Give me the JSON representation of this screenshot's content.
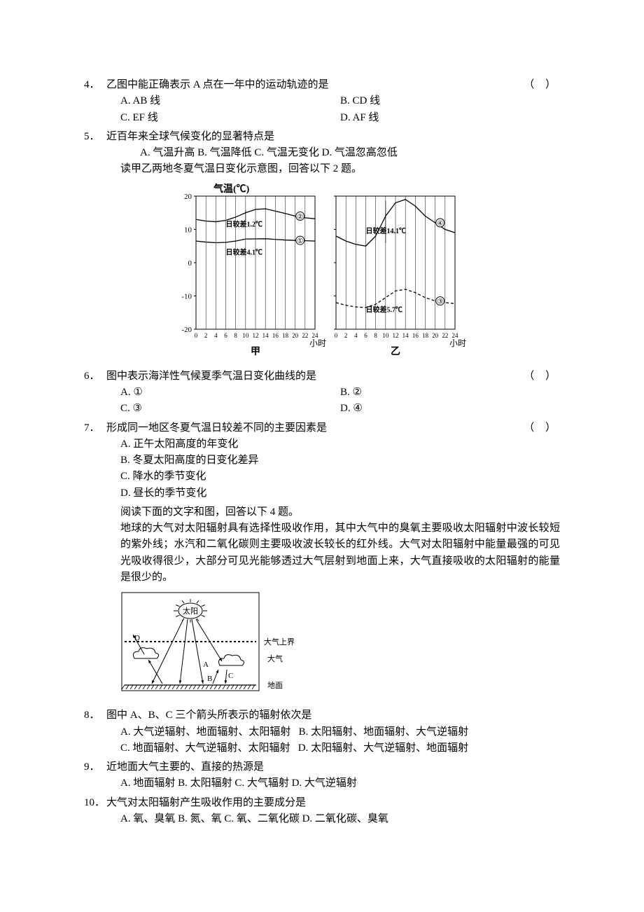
{
  "q4": {
    "num": "4．",
    "text": "乙图中能正确表示 A 点在一年中的运动轨迹的是",
    "paren": "（        ）",
    "optA": "A. AB 线",
    "optB": "B. CD 线",
    "optC": "C. EF 线",
    "optD": "D. AF 线"
  },
  "q5": {
    "num": "5．",
    "text": "近百年来全球气候变化的显著特点是",
    "opts": "A. 气温升高   B. 气温降低   C. 气温无变化   D. 气温忽高忽低",
    "intro": "读甲乙两地冬夏气温日变化示意图，回答以下 2 题。"
  },
  "chart1": {
    "title": "气温(℃)",
    "ylabels": [
      "20",
      "10",
      "0",
      "-10",
      "-20"
    ],
    "yvals": [
      20,
      10,
      0,
      -10,
      -20
    ],
    "xlabels": [
      "0",
      "2",
      "4",
      "6",
      "8",
      "10",
      "12",
      "14",
      "16",
      "18",
      "20",
      "22",
      "24"
    ],
    "xaxis_title": "小时",
    "panel_a_name": "甲",
    "panel_b_name": "乙",
    "annot_a_1": "日较差4.1℃",
    "annot_a_2": "日较差1.2℃",
    "annot_b_1": "日较差14.1℃",
    "annot_b_2": "日较差5.7℃",
    "mark2": "②",
    "mark1": "①",
    "mark4": "④",
    "mark3": "③",
    "line_color": "#000000",
    "grid_color": "#000000",
    "bg": "#ffffff",
    "curve_a_upper": [
      [
        0,
        13
      ],
      [
        2,
        12.5
      ],
      [
        4,
        12.3
      ],
      [
        6,
        12.7
      ],
      [
        8,
        13.7
      ],
      [
        10,
        15
      ],
      [
        12,
        16
      ],
      [
        14,
        16.2
      ],
      [
        16,
        15.5
      ],
      [
        18,
        14.8
      ],
      [
        20,
        14
      ],
      [
        22,
        13.5
      ],
      [
        24,
        13.2
      ]
    ],
    "curve_a_lower": [
      [
        0,
        6.5
      ],
      [
        2,
        6.2
      ],
      [
        4,
        6
      ],
      [
        6,
        6.1
      ],
      [
        8,
        6.5
      ],
      [
        10,
        7.1
      ],
      [
        12,
        7.15
      ],
      [
        14,
        7.2
      ],
      [
        16,
        7
      ],
      [
        18,
        6.8
      ],
      [
        20,
        6.7
      ],
      [
        22,
        6.6
      ],
      [
        24,
        6.5
      ]
    ],
    "curve_b_upper": [
      [
        0,
        8
      ],
      [
        2,
        6.5
      ],
      [
        4,
        5.5
      ],
      [
        6,
        5
      ],
      [
        8,
        8
      ],
      [
        10,
        14
      ],
      [
        12,
        18
      ],
      [
        14,
        19
      ],
      [
        16,
        17
      ],
      [
        18,
        14
      ],
      [
        20,
        12
      ],
      [
        22,
        10
      ],
      [
        24,
        9
      ]
    ],
    "curve_b_lower": [
      [
        0,
        -12
      ],
      [
        2,
        -12.8
      ],
      [
        4,
        -13.3
      ],
      [
        6,
        -13.5
      ],
      [
        8,
        -12.5
      ],
      [
        10,
        -10.5
      ],
      [
        12,
        -8.5
      ],
      [
        14,
        -8
      ],
      [
        16,
        -9
      ],
      [
        18,
        -10.5
      ],
      [
        20,
        -11.5
      ],
      [
        22,
        -12
      ],
      [
        24,
        -12.3
      ]
    ]
  },
  "q6": {
    "num": "6．",
    "text": "图中表示海洋性气候夏季气温日变化曲线的是",
    "paren": "（        ）",
    "optA": "A. ①",
    "optB": "B. ②",
    "optC": "C. ③",
    "optD": "D. ④"
  },
  "q7": {
    "num": "7．",
    "text": "形成同一地区冬夏气温日较差不同的主要因素是",
    "paren": "（        ）",
    "optA": "A. 正午太阳高度的年变化",
    "optB": "B. 冬夏太阳高度的日变化差异",
    "optC": "C. 降水的季节变化",
    "optD": "D. 昼长的季节变化"
  },
  "passage": {
    "intro": "阅读下面的文字和图，回答以下 4 题。",
    "body": "地球的大气对太阳辐射具有选择性吸收作用，其中大气中的臭氧主要吸收太阳辐射中波长较短的紫外线；水汽和二氧化碳则主要吸收波长较长的红外线。大气对太阳辐射中能量最强的可见光吸收得很少，大部分可见光能够透过大气层射到地面上来，大气直接吸收的太阳辐射的能量是很少的。"
  },
  "diagram": {
    "sun": "太阳",
    "atm_top": "大气上界",
    "atm": "大气",
    "ground": "地面",
    "lblA": "A",
    "lblB": "B",
    "lblC": "C",
    "lblD": "D",
    "line_color": "#000000"
  },
  "q8": {
    "num": "8．",
    "text": "图中 A、B、C 三个箭头所表示的辐射依次是",
    "optA": "A. 大气逆辐射、地面辐射、太阳辐射",
    "optB": "B. 太阳辐射、地面辐射、大气逆辐射",
    "optC": "C. 地面辐射、大气逆辐射、太阳辐射",
    "optD": "D. 太阳辐射、大气逆辐射、地面辐射"
  },
  "q9": {
    "num": "9．",
    "text": "近地面大气主要的、直接的热源是",
    "opts": "A. 地面辐射   B. 太阳辐射   C. 大气辐射   D. 大气逆辐射"
  },
  "q10": {
    "num": "10．",
    "text": "大气对太阳辐射产生吸收作用的主要成分是",
    "opts": "A. 氧、臭氧   B. 氮、氧   C. 氧、二氧化碳   D. 二氧化碳、臭氧"
  }
}
